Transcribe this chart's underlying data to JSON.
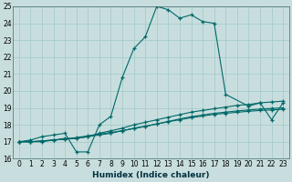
{
  "title": "",
  "xlabel": "Humidex (Indice chaleur)",
  "ylabel": "",
  "bg_color": "#c8dede",
  "grid_color": "#a8cccc",
  "line_color": "#006868",
  "xlim": [
    -0.5,
    23.5
  ],
  "ylim": [
    16,
    25
  ],
  "xticks": [
    0,
    1,
    2,
    3,
    4,
    5,
    6,
    7,
    8,
    9,
    10,
    11,
    12,
    13,
    14,
    15,
    16,
    17,
    18,
    19,
    20,
    21,
    22,
    23
  ],
  "yticks": [
    16,
    17,
    18,
    19,
    20,
    21,
    22,
    23,
    24,
    25
  ],
  "series": [
    {
      "x": [
        0,
        1,
        2,
        3,
        4,
        5,
        6,
        7,
        8,
        9,
        10,
        11,
        12,
        13,
        14,
        15,
        16,
        17,
        18,
        20,
        21,
        22,
        23
      ],
      "y": [
        17.0,
        17.1,
        17.3,
        17.4,
        17.5,
        16.4,
        16.4,
        18.0,
        18.5,
        20.8,
        22.5,
        23.2,
        25.0,
        24.8,
        24.3,
        24.5,
        24.1,
        24.0,
        19.8,
        19.1,
        19.3,
        18.3,
        19.3
      ]
    },
    {
      "x": [
        0,
        1,
        2,
        3,
        4,
        5,
        6,
        7,
        8,
        9,
        10,
        11,
        12,
        13,
        14,
        15,
        16,
        17,
        18,
        19,
        20,
        21,
        22,
        23
      ],
      "y": [
        17.0,
        17.0,
        17.0,
        17.1,
        17.2,
        17.2,
        17.3,
        17.5,
        17.65,
        17.8,
        18.0,
        18.15,
        18.3,
        18.45,
        18.6,
        18.75,
        18.85,
        18.95,
        19.05,
        19.15,
        19.2,
        19.3,
        19.35,
        19.4
      ]
    },
    {
      "x": [
        0,
        1,
        2,
        3,
        4,
        5,
        6,
        7,
        8,
        9,
        10,
        11,
        12,
        13,
        14,
        15,
        16,
        17,
        18,
        19,
        20,
        21,
        22,
        23
      ],
      "y": [
        17.0,
        17.0,
        17.05,
        17.1,
        17.15,
        17.2,
        17.3,
        17.4,
        17.5,
        17.65,
        17.8,
        17.92,
        18.05,
        18.2,
        18.35,
        18.48,
        18.58,
        18.68,
        18.75,
        18.82,
        18.88,
        18.93,
        18.97,
        19.0
      ]
    },
    {
      "x": [
        0,
        1,
        2,
        3,
        4,
        5,
        6,
        7,
        8,
        9,
        10,
        11,
        12,
        13,
        14,
        15,
        16,
        17,
        18,
        19,
        20,
        21,
        22,
        23
      ],
      "y": [
        17.0,
        17.0,
        17.05,
        17.1,
        17.15,
        17.25,
        17.35,
        17.45,
        17.55,
        17.65,
        17.78,
        17.9,
        18.05,
        18.18,
        18.3,
        18.42,
        18.52,
        18.62,
        18.68,
        18.74,
        18.8,
        18.85,
        18.88,
        18.92
      ]
    }
  ]
}
